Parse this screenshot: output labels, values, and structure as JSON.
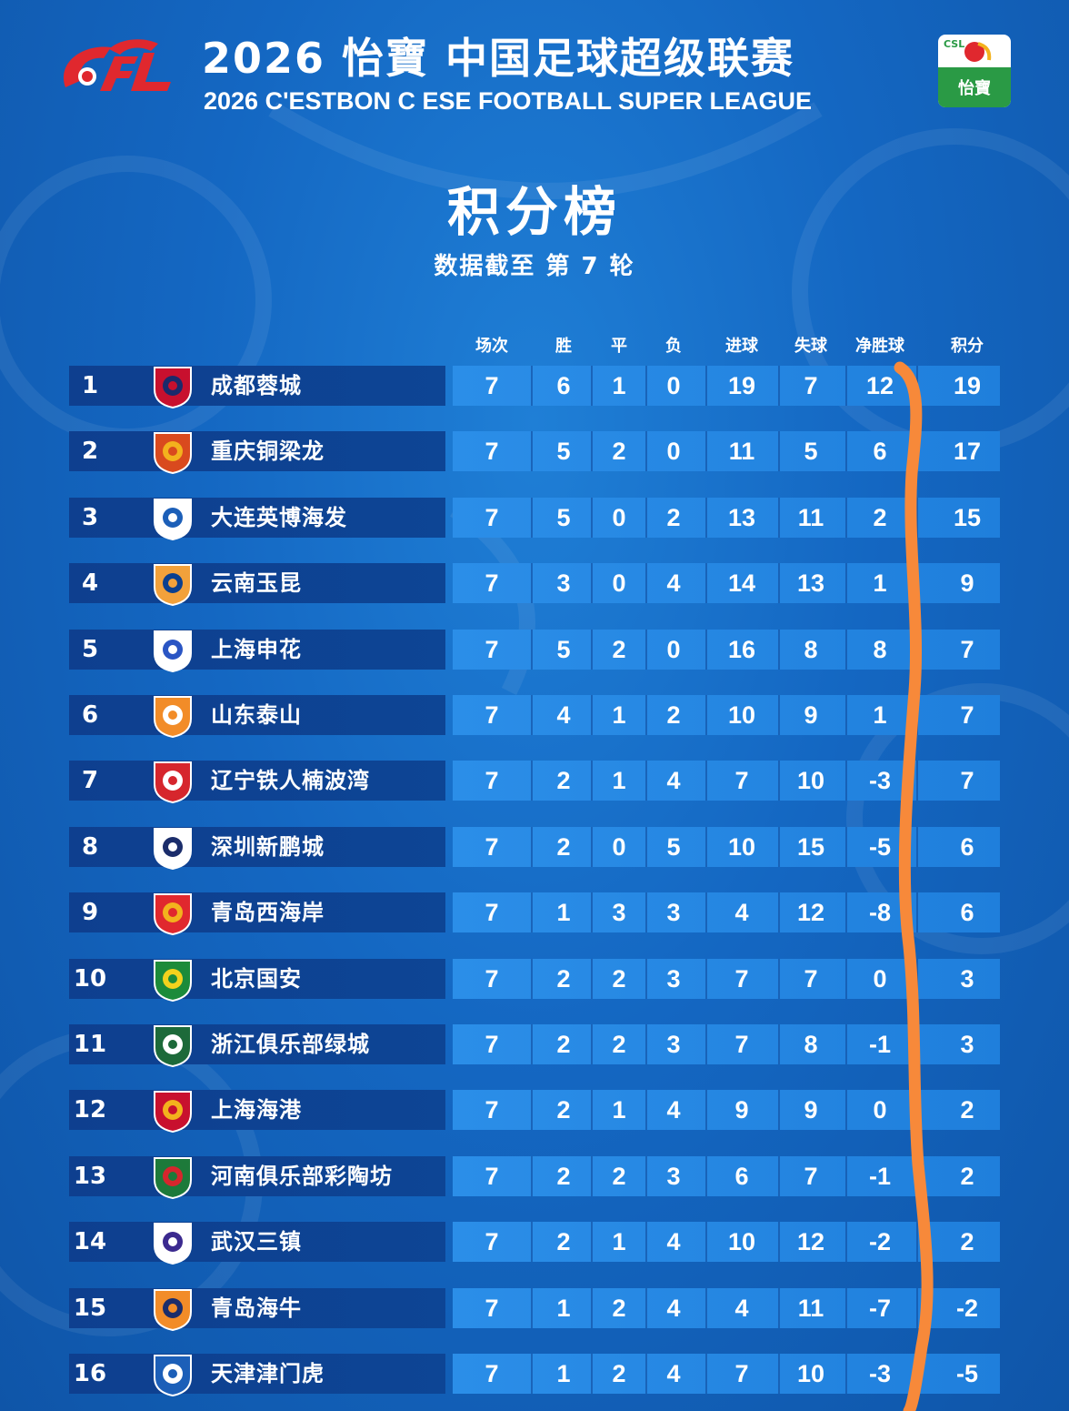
{
  "header": {
    "logo_text": "CFL",
    "title_cn": "2026 怡寶 中国足球超级联赛",
    "title_en": "2026 C'ESTBON C      ESE FOOTBALL SUPER LEAGUE",
    "sponsor_badge_top": "CSL",
    "sponsor_badge_text": "怡寶"
  },
  "page_title": "积分榜",
  "subtitle": "数据截至 第 7 轮",
  "columns": [
    "场次",
    "胜",
    "平",
    "负",
    "进球",
    "失球",
    "净胜球",
    "积分"
  ],
  "colors": {
    "background": "#1467c2",
    "left_panel": "#0e3f8f",
    "stats_panel": "#2b8ee8",
    "annotation_stroke": "#f7893a",
    "cfl_red": "#e0282e"
  },
  "rows": [
    {
      "rank": "1",
      "team": "成都蓉城",
      "logo": "chengdu-rongcheng-logo",
      "played": "7",
      "win": "6",
      "draw": "1",
      "loss": "0",
      "gf": "19",
      "ga": "7",
      "gd": "12",
      "pts": "19"
    },
    {
      "rank": "2",
      "team": "重庆铜梁龙",
      "logo": "chongqing-tongliangloong-logo",
      "played": "7",
      "win": "5",
      "draw": "2",
      "loss": "0",
      "gf": "11",
      "ga": "5",
      "gd": "6",
      "pts": "17"
    },
    {
      "rank": "3",
      "team": "大连英博海发",
      "logo": "dalian-yingbo-logo",
      "played": "7",
      "win": "5",
      "draw": "0",
      "loss": "2",
      "gf": "13",
      "ga": "11",
      "gd": "2",
      "pts": "15"
    },
    {
      "rank": "4",
      "team": "云南玉昆",
      "logo": "yunnan-yukun-logo",
      "played": "7",
      "win": "3",
      "draw": "0",
      "loss": "4",
      "gf": "14",
      "ga": "13",
      "gd": "1",
      "pts": "9"
    },
    {
      "rank": "5",
      "team": "上海申花",
      "logo": "shanghai-shenhua-logo",
      "played": "7",
      "win": "5",
      "draw": "2",
      "loss": "0",
      "gf": "16",
      "ga": "8",
      "gd": "8",
      "pts": "7"
    },
    {
      "rank": "6",
      "team": "山东泰山",
      "logo": "shandong-taishan-logo",
      "played": "7",
      "win": "4",
      "draw": "1",
      "loss": "2",
      "gf": "10",
      "ga": "9",
      "gd": "1",
      "pts": "7"
    },
    {
      "rank": "7",
      "team": "辽宁铁人楠波湾",
      "logo": "liaoning-tieren-logo",
      "played": "7",
      "win": "2",
      "draw": "1",
      "loss": "4",
      "gf": "7",
      "ga": "10",
      "gd": "-3",
      "pts": "7"
    },
    {
      "rank": "8",
      "team": "深圳新鹏城",
      "logo": "shenzhen-xinpengcheng-logo",
      "played": "7",
      "win": "2",
      "draw": "0",
      "loss": "5",
      "gf": "10",
      "ga": "15",
      "gd": "-5",
      "pts": "6"
    },
    {
      "rank": "9",
      "team": "青岛西海岸",
      "logo": "qingdao-west-coast-logo",
      "played": "7",
      "win": "1",
      "draw": "3",
      "loss": "3",
      "gf": "4",
      "ga": "12",
      "gd": "-8",
      "pts": "6"
    },
    {
      "rank": "10",
      "team": "北京国安",
      "logo": "beijing-guoan-logo",
      "played": "7",
      "win": "2",
      "draw": "2",
      "loss": "3",
      "gf": "7",
      "ga": "7",
      "gd": "0",
      "pts": "3"
    },
    {
      "rank": "11",
      "team": "浙江俱乐部绿城",
      "logo": "zhejiang-greentown-logo",
      "played": "7",
      "win": "2",
      "draw": "2",
      "loss": "3",
      "gf": "7",
      "ga": "8",
      "gd": "-1",
      "pts": "3"
    },
    {
      "rank": "12",
      "team": "上海海港",
      "logo": "shanghai-port-logo",
      "played": "7",
      "win": "2",
      "draw": "1",
      "loss": "4",
      "gf": "9",
      "ga": "9",
      "gd": "0",
      "pts": "2"
    },
    {
      "rank": "13",
      "team": "河南俱乐部彩陶坊",
      "logo": "henan-caitaofang-logo",
      "played": "7",
      "win": "2",
      "draw": "2",
      "loss": "3",
      "gf": "6",
      "ga": "7",
      "gd": "-1",
      "pts": "2"
    },
    {
      "rank": "14",
      "team": "武汉三镇",
      "logo": "wuhan-three-towns-logo",
      "played": "7",
      "win": "2",
      "draw": "1",
      "loss": "4",
      "gf": "10",
      "ga": "12",
      "gd": "-2",
      "pts": "2"
    },
    {
      "rank": "15",
      "team": "青岛海牛",
      "logo": "qingdao-hainiu-logo",
      "played": "7",
      "win": "1",
      "draw": "2",
      "loss": "4",
      "gf": "4",
      "ga": "11",
      "gd": "-7",
      "pts": "-2"
    },
    {
      "rank": "16",
      "team": "天津津门虎",
      "logo": "tianjin-jinmen-tiger-logo",
      "played": "7",
      "win": "1",
      "draw": "2",
      "loss": "4",
      "gf": "7",
      "ga": "10",
      "gd": "-3",
      "pts": "-5"
    }
  ]
}
